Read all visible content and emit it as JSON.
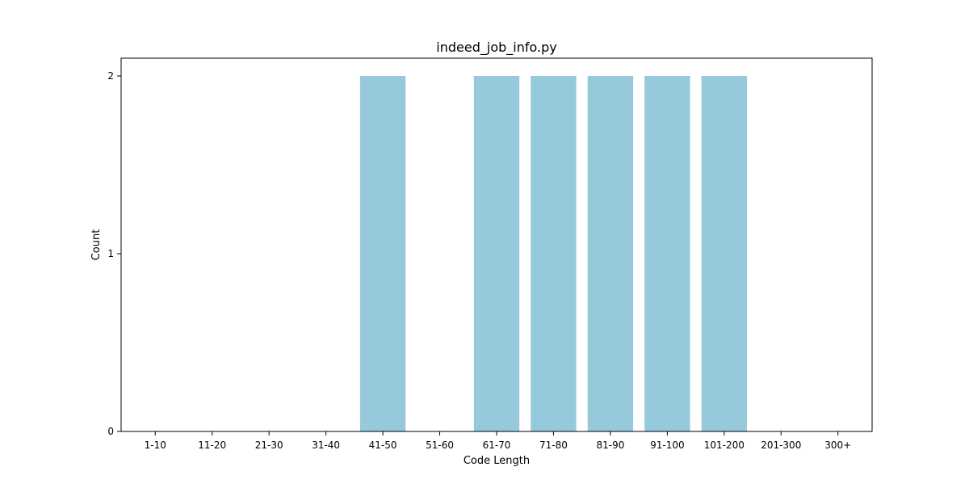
{
  "chart_data": {
    "type": "bar",
    "title": "indeed_job_info.py",
    "xlabel": "Code Length",
    "ylabel": "Count",
    "categories": [
      "1-10",
      "11-20",
      "21-30",
      "31-40",
      "41-50",
      "51-60",
      "61-70",
      "71-80",
      "81-90",
      "91-100",
      "101-200",
      "201-300",
      "300+"
    ],
    "values": [
      0,
      0,
      0,
      0,
      2,
      0,
      2,
      2,
      2,
      2,
      2,
      0,
      0
    ],
    "yticks": [
      0,
      1,
      2
    ],
    "ylim": [
      0,
      2.1
    ],
    "grid": false,
    "bar_color": "#96c9dc"
  }
}
